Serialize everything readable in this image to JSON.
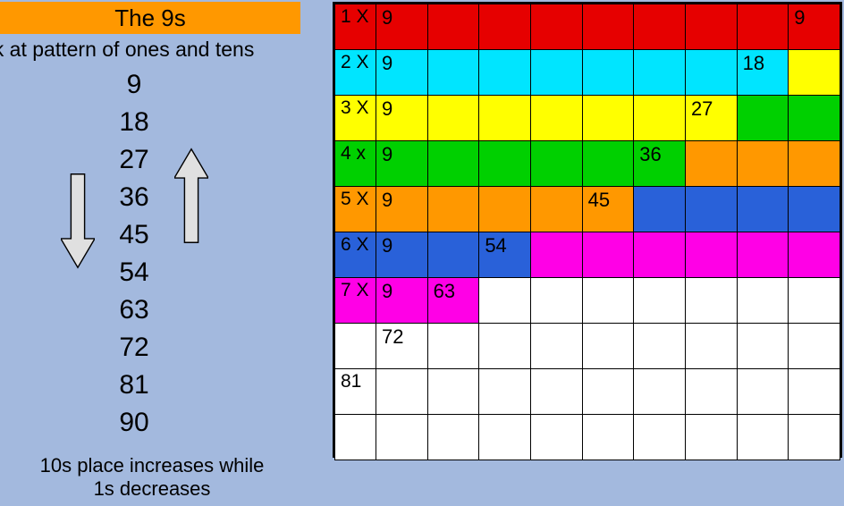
{
  "title": "The 9s",
  "subtitle": "ok at pattern of ones and tens",
  "numbers": [
    "9",
    "18",
    "27",
    "36",
    "45",
    "54",
    "63",
    "72",
    "81",
    "90"
  ],
  "footer_line1": "10s place increases while",
  "footer_line2": "1s decreases",
  "colors": {
    "page_bg": "#a3b9de",
    "banner_bg": "#ff9800",
    "arrow_fill": "#e0e0e0",
    "arrow_stroke": "#000000",
    "grid_border": "#000000",
    "cell": {
      "red": "#e60000",
      "cyan": "#00e5ff",
      "yellow": "#ffff00",
      "green": "#00d000",
      "orange": "#ff9800",
      "blue": "#2961d9",
      "magenta": "#ff00e6",
      "white": "#ffffff"
    }
  },
  "typography": {
    "title_fontsize": 26,
    "list_fontsize": 30,
    "grid_fontsize": 22,
    "subtitle_fontsize": 23,
    "footer_fontsize": 22
  },
  "grid": {
    "type": "table",
    "cols": 10,
    "rows": [
      {
        "label": "1 X 9",
        "cells": [
          {
            "c": "red",
            "t": "1 X"
          },
          {
            "c": "red",
            "t": "9"
          },
          {
            "c": "red"
          },
          {
            "c": "red"
          },
          {
            "c": "red"
          },
          {
            "c": "red"
          },
          {
            "c": "red"
          },
          {
            "c": "red"
          },
          {
            "c": "red"
          },
          {
            "c": "red",
            "t": "9"
          }
        ]
      },
      {
        "label": "2 X 9",
        "cells": [
          {
            "c": "cyan",
            "t": "2 X"
          },
          {
            "c": "cyan",
            "t": "9"
          },
          {
            "c": "cyan"
          },
          {
            "c": "cyan"
          },
          {
            "c": "cyan"
          },
          {
            "c": "cyan"
          },
          {
            "c": "cyan"
          },
          {
            "c": "cyan"
          },
          {
            "c": "cyan",
            "t": "18"
          },
          {
            "c": "yellow"
          }
        ]
      },
      {
        "label": "3 X 9",
        "cells": [
          {
            "c": "yellow",
            "t": "3 X"
          },
          {
            "c": "yellow",
            "t": "9"
          },
          {
            "c": "yellow"
          },
          {
            "c": "yellow"
          },
          {
            "c": "yellow"
          },
          {
            "c": "yellow"
          },
          {
            "c": "yellow"
          },
          {
            "c": "yellow",
            "t": "27"
          },
          {
            "c": "green"
          },
          {
            "c": "green"
          }
        ]
      },
      {
        "label": "4 x 9",
        "cells": [
          {
            "c": "green",
            "t": "4 x"
          },
          {
            "c": "green",
            "t": "9"
          },
          {
            "c": "green"
          },
          {
            "c": "green"
          },
          {
            "c": "green"
          },
          {
            "c": "green"
          },
          {
            "c": "green",
            "t": "36"
          },
          {
            "c": "orange"
          },
          {
            "c": "orange"
          },
          {
            "c": "orange"
          }
        ]
      },
      {
        "label": "5 X 9",
        "cells": [
          {
            "c": "orange",
            "t": "5 X"
          },
          {
            "c": "orange",
            "t": "9"
          },
          {
            "c": "orange"
          },
          {
            "c": "orange"
          },
          {
            "c": "orange"
          },
          {
            "c": "orange",
            "t": "45"
          },
          {
            "c": "blue"
          },
          {
            "c": "blue"
          },
          {
            "c": "blue"
          },
          {
            "c": "blue"
          }
        ]
      },
      {
        "label": "6 X 9",
        "cells": [
          {
            "c": "blue",
            "t": "6 X"
          },
          {
            "c": "blue",
            "t": "9"
          },
          {
            "c": "blue"
          },
          {
            "c": "blue",
            "t": "54"
          },
          {
            "c": "magenta"
          },
          {
            "c": "magenta"
          },
          {
            "c": "magenta"
          },
          {
            "c": "magenta"
          },
          {
            "c": "magenta"
          },
          {
            "c": "magenta"
          }
        ]
      },
      {
        "label": "7 X 9",
        "cells": [
          {
            "c": "magenta",
            "t": "7 X"
          },
          {
            "c": "magenta",
            "t": "9"
          },
          {
            "c": "magenta",
            "t": "63"
          },
          {
            "c": "white"
          },
          {
            "c": "white"
          },
          {
            "c": "white"
          },
          {
            "c": "white"
          },
          {
            "c": "white"
          },
          {
            "c": "white"
          },
          {
            "c": "white"
          }
        ]
      },
      {
        "label": "72",
        "cells": [
          {
            "c": "white"
          },
          {
            "c": "white",
            "t": "72"
          },
          {
            "c": "white"
          },
          {
            "c": "white"
          },
          {
            "c": "white"
          },
          {
            "c": "white"
          },
          {
            "c": "white"
          },
          {
            "c": "white"
          },
          {
            "c": "white"
          },
          {
            "c": "white"
          }
        ]
      },
      {
        "label": "81",
        "cells": [
          {
            "c": "white",
            "t": "81"
          },
          {
            "c": "white"
          },
          {
            "c": "white"
          },
          {
            "c": "white"
          },
          {
            "c": "white"
          },
          {
            "c": "white"
          },
          {
            "c": "white"
          },
          {
            "c": "white"
          },
          {
            "c": "white"
          },
          {
            "c": "white"
          }
        ]
      },
      {
        "label": "",
        "cells": [
          {
            "c": "white"
          },
          {
            "c": "white"
          },
          {
            "c": "white"
          },
          {
            "c": "white"
          },
          {
            "c": "white"
          },
          {
            "c": "white"
          },
          {
            "c": "white"
          },
          {
            "c": "white"
          },
          {
            "c": "white"
          },
          {
            "c": "white"
          }
        ]
      }
    ]
  }
}
